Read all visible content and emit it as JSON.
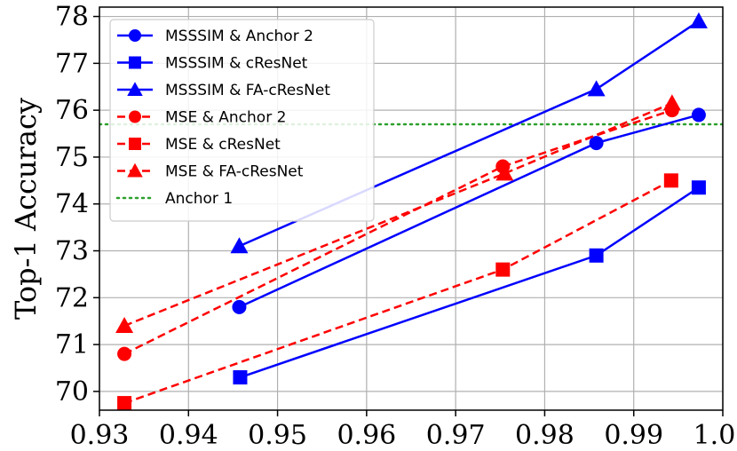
{
  "chart_data": {
    "type": "line",
    "title": "",
    "xlabel": "",
    "ylabel": "Top-1 Accuracy",
    "xlim": [
      0.93,
      1.0
    ],
    "ylim": [
      69.6,
      78.2
    ],
    "x_ticks": [
      "0.93",
      "0.94",
      "0.95",
      "0.96",
      "0.97",
      "0.98",
      "0.99",
      "1.00"
    ],
    "y_ticks": [
      "70",
      "71",
      "72",
      "73",
      "74",
      "75",
      "76",
      "77",
      "78"
    ],
    "grid": true,
    "legend_position": "top-left",
    "series": [
      {
        "name": "MSSSIM & Anchor 2",
        "color": "#0000ff",
        "dash": "solid",
        "marker": "circle",
        "x": [
          0.9457,
          0.9858,
          0.9973
        ],
        "y": [
          71.8,
          75.3,
          75.9
        ]
      },
      {
        "name": "MSSSIM & cResNet",
        "color": "#0000ff",
        "dash": "solid",
        "marker": "square",
        "x": [
          0.9458,
          0.9858,
          0.9973
        ],
        "y": [
          70.3,
          72.9,
          74.35
        ]
      },
      {
        "name": "MSSSIM & FA-cResNet",
        "color": "#0000ff",
        "dash": "solid",
        "marker": "triangle",
        "x": [
          0.9457,
          0.9858,
          0.9973
        ],
        "y": [
          73.1,
          76.45,
          77.9
        ]
      },
      {
        "name": "MSE & Anchor 2",
        "color": "#ff0000",
        "dash": "dashed",
        "marker": "circle",
        "x": [
          0.9328,
          0.9753,
          0.9943
        ],
        "y": [
          70.8,
          74.8,
          76.0
        ]
      },
      {
        "name": "MSE & cResNet",
        "color": "#ff0000",
        "dash": "dashed",
        "marker": "square",
        "x": [
          0.9328,
          0.9753,
          0.9942
        ],
        "y": [
          69.75,
          72.6,
          74.5
        ]
      },
      {
        "name": "MSE & FA-cResNet",
        "color": "#ff0000",
        "dash": "dashed",
        "marker": "triangle",
        "x": [
          0.9328,
          0.9755,
          0.9943
        ],
        "y": [
          71.4,
          74.65,
          76.15
        ]
      }
    ],
    "reference_lines": [
      {
        "name": "Anchor 1",
        "orientation": "horizontal",
        "y": 75.7,
        "color": "#2ca02c",
        "dash": "dotted"
      }
    ]
  }
}
